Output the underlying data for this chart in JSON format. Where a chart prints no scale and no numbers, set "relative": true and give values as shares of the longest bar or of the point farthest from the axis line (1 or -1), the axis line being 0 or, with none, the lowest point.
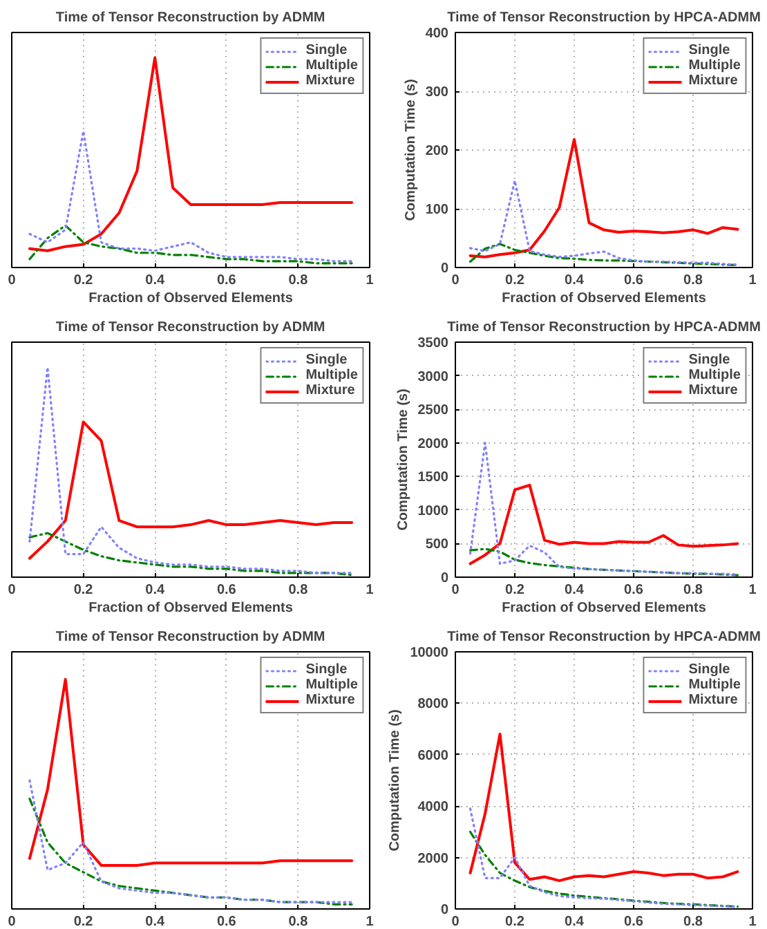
{
  "chart_data": [
    {
      "type": "line",
      "title": "Time of Tensor Reconstruction by ADMM",
      "xlabel": "Fraction of Observed Elements",
      "relative": true,
      "grid": "x",
      "legend": "top right",
      "xlim": [
        0,
        1
      ],
      "xticks": [
        0,
        0.2,
        0.4,
        0.6,
        0.8,
        1
      ],
      "x": [
        0.05,
        0.1,
        0.15,
        0.2,
        0.25,
        0.3,
        0.35,
        0.4,
        0.45,
        0.5,
        0.55,
        0.6,
        0.65,
        0.7,
        0.75,
        0.8,
        0.85,
        0.9,
        0.95
      ],
      "series": [
        {
          "name": "Single",
          "color": "#8080ff",
          "line_style": "dotted",
          "values": [
            0.16,
            0.12,
            0.18,
            0.65,
            0.12,
            0.09,
            0.09,
            0.08,
            0.1,
            0.12,
            0.07,
            0.05,
            0.05,
            0.05,
            0.05,
            0.04,
            0.04,
            0.03,
            0.03
          ]
        },
        {
          "name": "Multiple",
          "color": "#008000",
          "line_style": "dashdot",
          "values": [
            0.04,
            0.14,
            0.2,
            0.12,
            0.1,
            0.09,
            0.07,
            0.07,
            0.06,
            0.06,
            0.05,
            0.04,
            0.04,
            0.03,
            0.03,
            0.03,
            0.02,
            0.02,
            0.02
          ]
        },
        {
          "name": "Mixture",
          "color": "#ff0000",
          "line_style": "solid",
          "values": [
            0.09,
            0.08,
            0.1,
            0.11,
            0.16,
            0.26,
            0.46,
            1,
            0.38,
            0.3,
            0.3,
            0.3,
            0.3,
            0.3,
            0.31,
            0.31,
            0.31,
            0.31,
            0.31
          ]
        }
      ]
    },
    {
      "type": "line",
      "title": "Time of Tensor Reconstruction by HPCA-ADMM",
      "xlabel": "Fraction of Observed Elements",
      "ylabel": "Computation Time (s)",
      "grid": true,
      "legend": "top right",
      "xlim": [
        0,
        1
      ],
      "xticks": [
        0,
        0.2,
        0.4,
        0.6,
        0.8,
        1
      ],
      "ylim": [
        0,
        400
      ],
      "yticks": [
        0,
        100,
        200,
        300,
        400
      ],
      "x": [
        0.05,
        0.1,
        0.15,
        0.2,
        0.25,
        0.3,
        0.35,
        0.4,
        0.45,
        0.5,
        0.55,
        0.6,
        0.65,
        0.7,
        0.75,
        0.8,
        0.85,
        0.9,
        0.95
      ],
      "series": [
        {
          "name": "Single",
          "color": "#8080ff",
          "line_style": "dotted",
          "values": [
            33,
            28,
            40,
            148,
            28,
            22,
            18,
            20,
            24,
            27,
            16,
            12,
            10,
            10,
            9,
            8,
            8,
            6,
            5
          ]
        },
        {
          "name": "Multiple",
          "color": "#008000",
          "line_style": "dashdot",
          "values": [
            10,
            32,
            40,
            30,
            25,
            20,
            16,
            15,
            13,
            12,
            12,
            11,
            10,
            9,
            8,
            7,
            6,
            5,
            4
          ]
        },
        {
          "name": "Mixture",
          "color": "#ff0000",
          "line_style": "solid",
          "values": [
            20,
            18,
            22,
            25,
            30,
            62,
            102,
            218,
            76,
            64,
            60,
            62,
            61,
            59,
            61,
            64,
            58,
            68,
            65
          ]
        }
      ]
    },
    {
      "type": "line",
      "title": "Time of Tensor Reconstruction by ADMM",
      "xlabel": "Fraction of Observed Elements",
      "relative": true,
      "grid": "x",
      "legend": "top right",
      "xlim": [
        0,
        1
      ],
      "xticks": [
        0,
        0.2,
        0.4,
        0.6,
        0.8,
        1
      ],
      "x": [
        0.05,
        0.1,
        0.15,
        0.2,
        0.25,
        0.3,
        0.35,
        0.4,
        0.45,
        0.5,
        0.55,
        0.6,
        0.65,
        0.7,
        0.75,
        0.8,
        0.85,
        0.9,
        0.95
      ],
      "series": [
        {
          "name": "Single",
          "color": "#8080ff",
          "line_style": "dotted",
          "values": [
            0.17,
            1,
            0.11,
            0.11,
            0.24,
            0.14,
            0.09,
            0.07,
            0.06,
            0.06,
            0.05,
            0.05,
            0.04,
            0.04,
            0.03,
            0.03,
            0.02,
            0.02,
            0.02
          ]
        },
        {
          "name": "Multiple",
          "color": "#008000",
          "line_style": "dashdot",
          "values": [
            0.19,
            0.21,
            0.17,
            0.13,
            0.1,
            0.08,
            0.07,
            0.06,
            0.05,
            0.05,
            0.04,
            0.04,
            0.03,
            0.03,
            0.02,
            0.02,
            0.02,
            0.02,
            0.01
          ]
        },
        {
          "name": "Mixture",
          "color": "#ff0000",
          "line_style": "solid",
          "values": [
            0.09,
            0.17,
            0.27,
            0.74,
            0.65,
            0.27,
            0.24,
            0.24,
            0.24,
            0.25,
            0.27,
            0.25,
            0.25,
            0.26,
            0.27,
            0.26,
            0.25,
            0.26,
            0.26
          ]
        }
      ]
    },
    {
      "type": "line",
      "title": "Time of Tensor Reconstruction by HPCA-ADMM",
      "xlabel": "Fraction of Observed Elements",
      "ylabel": "Computation Time (s)",
      "grid": true,
      "legend": "top right",
      "xlim": [
        0,
        1
      ],
      "xticks": [
        0,
        0.2,
        0.4,
        0.6,
        0.8,
        1
      ],
      "ylim": [
        0,
        3500
      ],
      "yticks": [
        0,
        500,
        1000,
        1500,
        2000,
        2500,
        3000,
        3500
      ],
      "x": [
        0.05,
        0.1,
        0.15,
        0.2,
        0.25,
        0.3,
        0.35,
        0.4,
        0.45,
        0.5,
        0.55,
        0.6,
        0.65,
        0.7,
        0.75,
        0.8,
        0.85,
        0.9,
        0.95
      ],
      "series": [
        {
          "name": "Single",
          "color": "#8080ff",
          "line_style": "dotted",
          "values": [
            350,
            2000,
            200,
            250,
            470,
            370,
            150,
            130,
            120,
            110,
            100,
            90,
            80,
            70,
            60,
            60,
            50,
            50,
            40
          ]
        },
        {
          "name": "Multiple",
          "color": "#008000",
          "line_style": "dashdot",
          "values": [
            400,
            420,
            380,
            260,
            210,
            180,
            160,
            140,
            120,
            110,
            100,
            90,
            80,
            70,
            60,
            50,
            50,
            40,
            30
          ]
        },
        {
          "name": "Mixture",
          "color": "#ff0000",
          "line_style": "solid",
          "values": [
            200,
            330,
            500,
            1300,
            1370,
            550,
            490,
            520,
            500,
            500,
            530,
            520,
            520,
            620,
            480,
            460,
            470,
            480,
            500
          ]
        }
      ]
    },
    {
      "type": "line",
      "title": "Time of Tensor Reconstruction by ADMM",
      "relative": true,
      "grid": "x",
      "legend": "top right",
      "xlim": [
        0,
        1
      ],
      "xticks": [
        0,
        0.2,
        0.4,
        0.6,
        0.8,
        1
      ],
      "x": [
        0.05,
        0.1,
        0.15,
        0.2,
        0.25,
        0.3,
        0.35,
        0.4,
        0.45,
        0.5,
        0.55,
        0.6,
        0.65,
        0.7,
        0.75,
        0.8,
        0.85,
        0.9,
        0.95
      ],
      "series": [
        {
          "name": "Single",
          "color": "#8080ff",
          "line_style": "dotted",
          "values": [
            0.56,
            0.17,
            0.2,
            0.29,
            0.12,
            0.09,
            0.08,
            0.07,
            0.07,
            0.06,
            0.05,
            0.05,
            0.04,
            0.04,
            0.03,
            0.03,
            0.03,
            0.03,
            0.03
          ]
        },
        {
          "name": "Multiple",
          "color": "#008000",
          "line_style": "dashdot",
          "values": [
            0.48,
            0.29,
            0.2,
            0.16,
            0.12,
            0.1,
            0.09,
            0.08,
            0.07,
            0.06,
            0.05,
            0.05,
            0.04,
            0.04,
            0.03,
            0.03,
            0.03,
            0.02,
            0.02
          ]
        },
        {
          "name": "Mixture",
          "color": "#ff0000",
          "line_style": "solid",
          "values": [
            0.22,
            0.52,
            1,
            0.28,
            0.19,
            0.19,
            0.19,
            0.2,
            0.2,
            0.2,
            0.2,
            0.2,
            0.2,
            0.2,
            0.21,
            0.21,
            0.21,
            0.21,
            0.21
          ]
        }
      ]
    },
    {
      "type": "line",
      "title": "Time of Tensor Reconstruction by HPCA-ADMM",
      "ylabel": "Computation Time (s)",
      "grid": true,
      "legend": "top right",
      "xlim": [
        0,
        1
      ],
      "xticks": [
        0,
        0.2,
        0.4,
        0.6,
        0.8,
        1
      ],
      "ylim": [
        0,
        10000
      ],
      "yticks": [
        0,
        2000,
        4000,
        6000,
        8000,
        10000
      ],
      "x": [
        0.05,
        0.1,
        0.15,
        0.2,
        0.25,
        0.3,
        0.35,
        0.4,
        0.45,
        0.5,
        0.55,
        0.6,
        0.65,
        0.7,
        0.75,
        0.8,
        0.85,
        0.9,
        0.95
      ],
      "series": [
        {
          "name": "Single",
          "color": "#8080ff",
          "line_style": "dotted",
          "values": [
            3900,
            1200,
            1200,
            2000,
            900,
            650,
            500,
            450,
            420,
            400,
            350,
            300,
            250,
            200,
            180,
            150,
            130,
            100,
            80
          ]
        },
        {
          "name": "Multiple",
          "color": "#008000",
          "line_style": "dashdot",
          "values": [
            3000,
            2100,
            1400,
            1100,
            850,
            700,
            600,
            520,
            470,
            420,
            380,
            320,
            280,
            230,
            200,
            180,
            150,
            120,
            90
          ]
        },
        {
          "name": "Mixture",
          "color": "#ff0000",
          "line_style": "solid",
          "values": [
            1400,
            3700,
            6800,
            1800,
            1150,
            1250,
            1100,
            1250,
            1300,
            1250,
            1350,
            1450,
            1400,
            1300,
            1350,
            1350,
            1200,
            1250,
            1450
          ]
        }
      ]
    }
  ]
}
